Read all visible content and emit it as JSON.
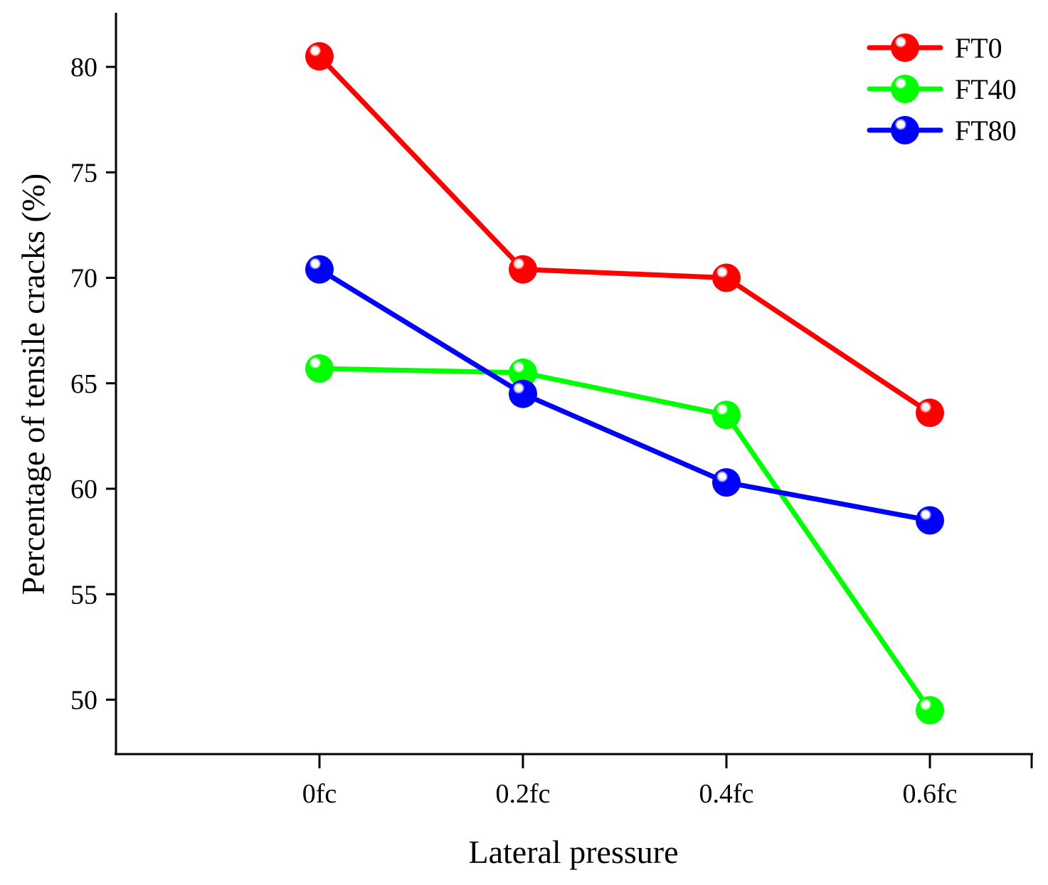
{
  "chart_data": {
    "type": "line",
    "categories": [
      "0fc",
      "0.2fc",
      "0.4fc",
      "0.6fc"
    ],
    "series": [
      {
        "name": "FT0",
        "color": "#ff0000",
        "values": [
          80.5,
          70.4,
          70.0,
          63.6
        ]
      },
      {
        "name": "FT40",
        "color": "#00ff00",
        "values": [
          65.7,
          65.5,
          63.5,
          49.5
        ]
      },
      {
        "name": "FT80",
        "color": "#0000ff",
        "values": [
          70.4,
          64.5,
          60.3,
          58.5
        ]
      }
    ],
    "xlabel": "Lateral pressure",
    "ylabel": "Percentage of tensile cracks (%)",
    "ylim": [
      47.5,
      82.4
    ],
    "yticks": [
      50,
      55,
      60,
      65,
      70,
      75,
      80
    ],
    "legend_position": "top-right",
    "grid": false
  }
}
